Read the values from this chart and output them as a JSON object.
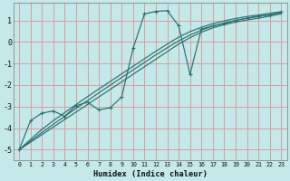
{
  "xlabel": "Humidex (Indice chaleur)",
  "background_color": "#c5e8e8",
  "grid_color": "#d4a0a0",
  "line_color": "#2a7070",
  "xlim": [
    -0.5,
    23.5
  ],
  "ylim": [
    -5.5,
    1.8
  ],
  "x_data": [
    0,
    1,
    2,
    3,
    4,
    5,
    6,
    7,
    8,
    9,
    10,
    11,
    12,
    13,
    14,
    15,
    16,
    17,
    18,
    19,
    20,
    21,
    22,
    23
  ],
  "y_main": [
    -5.0,
    -3.65,
    -3.3,
    -3.2,
    -3.45,
    -2.95,
    -2.8,
    -3.15,
    -3.05,
    -2.55,
    -0.3,
    1.3,
    1.42,
    1.45,
    0.75,
    -1.5,
    0.6,
    0.75,
    0.85,
    1.0,
    1.1,
    1.2,
    1.25,
    1.4
  ],
  "y_line1": [
    -5.0,
    -4.65,
    -4.3,
    -3.95,
    -3.6,
    -3.25,
    -2.9,
    -2.55,
    -2.2,
    -1.85,
    -1.5,
    -1.15,
    -0.8,
    -0.45,
    -0.1,
    0.2,
    0.45,
    0.65,
    0.8,
    0.92,
    1.02,
    1.1,
    1.2,
    1.3
  ],
  "y_line2": [
    -5.0,
    -4.6,
    -4.2,
    -3.82,
    -3.45,
    -3.08,
    -2.72,
    -2.36,
    -2.0,
    -1.65,
    -1.3,
    -0.95,
    -0.6,
    -0.27,
    0.05,
    0.32,
    0.55,
    0.73,
    0.88,
    1.0,
    1.1,
    1.18,
    1.27,
    1.35
  ],
  "y_line3": [
    -5.0,
    -4.52,
    -4.05,
    -3.65,
    -3.28,
    -2.9,
    -2.54,
    -2.18,
    -1.83,
    -1.48,
    -1.13,
    -0.78,
    -0.43,
    -0.1,
    0.22,
    0.48,
    0.68,
    0.85,
    0.98,
    1.09,
    1.18,
    1.25,
    1.33,
    1.4
  ],
  "yticks": [
    -5,
    -4,
    -3,
    -2,
    -1,
    0,
    1
  ],
  "xticks": [
    0,
    1,
    2,
    3,
    4,
    5,
    6,
    7,
    8,
    9,
    10,
    11,
    12,
    13,
    14,
    15,
    16,
    17,
    18,
    19,
    20,
    21,
    22,
    23
  ]
}
